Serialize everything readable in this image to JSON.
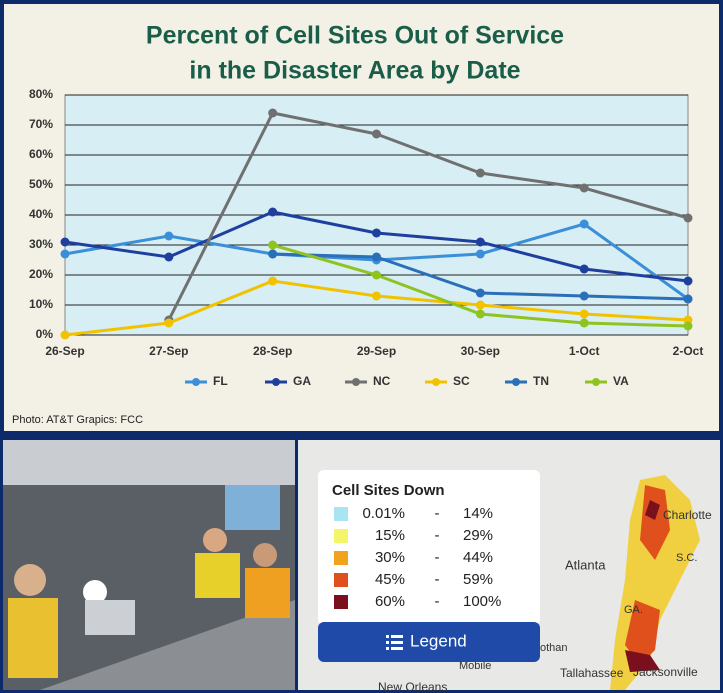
{
  "chart_data": {
    "type": "line",
    "title": [
      "Percent of Cell Sites Out of Service",
      "in the Disaster Area by Date"
    ],
    "categories": [
      "26-Sep",
      "27-Sep",
      "28-Sep",
      "29-Sep",
      "30-Sep",
      "1-Oct",
      "2-Oct"
    ],
    "series": [
      {
        "name": "FL",
        "color": "#3a8fd8",
        "values": [
          27,
          33,
          27,
          25,
          27,
          37,
          12
        ]
      },
      {
        "name": "GA",
        "color": "#1f3f9f",
        "values": [
          31,
          26,
          41,
          34,
          31,
          22,
          18
        ]
      },
      {
        "name": "NC",
        "color": "#707070",
        "values": [
          null,
          5,
          74,
          67,
          54,
          49,
          39
        ]
      },
      {
        "name": "SC",
        "color": "#f2c200",
        "values": [
          0,
          4,
          18,
          13,
          10,
          7,
          5
        ]
      },
      {
        "name": "TN",
        "color": "#2a6fb8",
        "values": [
          null,
          null,
          27,
          26,
          14,
          13,
          12
        ]
      },
      {
        "name": "VA",
        "color": "#8fc31f",
        "values": [
          null,
          null,
          30,
          20,
          7,
          4,
          3
        ]
      }
    ],
    "ylim": [
      0,
      80
    ],
    "yticks": [
      {
        "value": 0,
        "label": "0%"
      },
      {
        "value": 10,
        "label": "10%"
      },
      {
        "value": 20,
        "label": "20%"
      },
      {
        "value": 30,
        "label": "30%"
      },
      {
        "value": 40,
        "label": "40%"
      },
      {
        "value": 50,
        "label": "50%"
      },
      {
        "value": 60,
        "label": "60%"
      },
      {
        "value": 70,
        "label": "70%"
      },
      {
        "value": 80,
        "label": "80%"
      }
    ],
    "grid": true
  },
  "caption": "Photo: AT&T Grapics: FCC",
  "map": {
    "legend_title": "Cell Sites Down",
    "rows": [
      {
        "color": "#a9e4f2",
        "from": "0.01%",
        "sep": "-",
        "to": "14%"
      },
      {
        "color": "#f5f56a",
        "from": "15%",
        "sep": "-",
        "to": "29%"
      },
      {
        "color": "#f2a21c",
        "from": "30%",
        "sep": "-",
        "to": "44%"
      },
      {
        "color": "#e0501c",
        "from": "45%",
        "sep": "-",
        "to": "59%"
      },
      {
        "color": "#7a0f1e",
        "from": "60%",
        "sep": "-",
        "to": "100%"
      }
    ],
    "button": "Legend",
    "places": [
      "Charlotte",
      "S.C.",
      "Atlanta",
      "GA.",
      "Tallahassee",
      "Jacksonville",
      "Mobile",
      "New Orleans",
      "othan"
    ]
  }
}
